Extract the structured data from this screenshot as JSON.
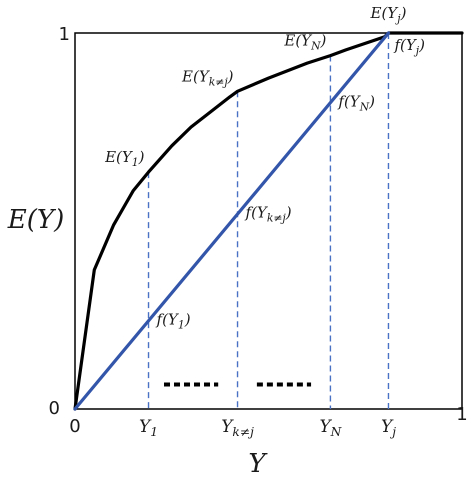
{
  "chart_data": {
    "type": "line",
    "title": "",
    "xlabel": "Y",
    "ylabel": "E(Y)",
    "xlim": [
      0,
      1
    ],
    "ylim": [
      0,
      1
    ],
    "grid": false,
    "ticks": {
      "x0": "0",
      "x1": "1",
      "y0": "0",
      "y1": "1"
    },
    "series": [
      {
        "key": "curve",
        "color": "#000000",
        "x": [
          0,
          0.05,
          0.1,
          0.15,
          0.19,
          0.25,
          0.3,
          0.35,
          0.4,
          0.42,
          0.5,
          0.6,
          0.66,
          0.7,
          0.8,
          0.81,
          0.9,
          1.0
        ],
        "y": [
          0,
          0.37,
          0.49,
          0.58,
          0.63,
          0.7,
          0.75,
          0.79,
          0.83,
          0.845,
          0.88,
          0.92,
          0.94,
          0.955,
          0.99,
          1.0,
          1.0,
          1.0
        ]
      },
      {
        "key": "line",
        "color": "#3355aa",
        "x": [
          0,
          0.81
        ],
        "y": [
          0,
          1.0
        ]
      }
    ],
    "markers": [
      {
        "key": "y1",
        "x": 0.19,
        "x_label": "Y1",
        "e_label": "E(Y1)",
        "f_label": "f(Y1)",
        "e_y": 0.63,
        "f_y": 0.235
      },
      {
        "key": "yk",
        "x": 0.42,
        "x_label": "Yk≠j",
        "e_label": "E(Yk≠j)",
        "f_label": "f(Yk≠j)",
        "e_y": 0.845,
        "f_y": 0.52
      },
      {
        "key": "yn",
        "x": 0.66,
        "x_label": "YN",
        "e_label": "E(YN)",
        "f_label": "f(YN)",
        "e_y": 0.94,
        "f_y": 0.815
      },
      {
        "key": "yj",
        "x": 0.81,
        "x_label": "Yj",
        "e_label": "E(Yj)",
        "f_label": "f(Yj)",
        "e_y": 1.0,
        "f_y": 1.0
      }
    ],
    "ellipsis": [
      {
        "x_from": 0.23,
        "x_to": 0.37,
        "y": 0.065
      },
      {
        "x_from": 0.47,
        "x_to": 0.61,
        "y": 0.065
      }
    ],
    "colors": {
      "axis": "#000000",
      "curve": "#000000",
      "line": "#3355aa",
      "guide": "#4a72c4"
    }
  }
}
